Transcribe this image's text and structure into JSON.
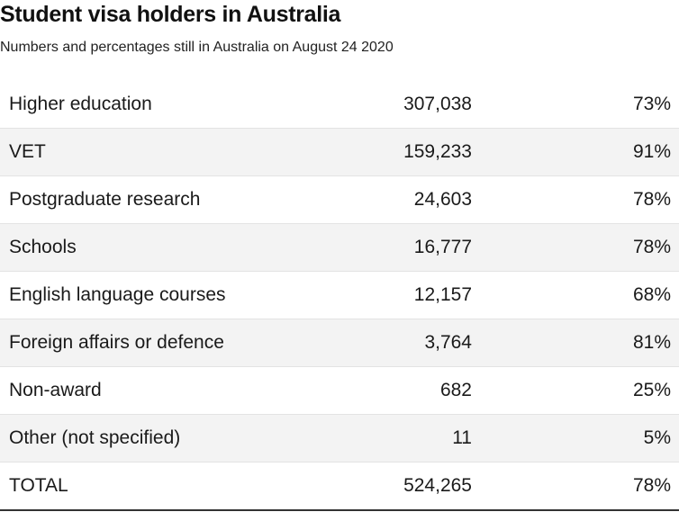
{
  "chart_data": {
    "type": "table",
    "title": "Student visa holders in Australia",
    "subtitle": "Numbers and percentages still in Australia on August 24 2020",
    "rows": [
      {
        "label": "Higher education",
        "number": "307,038",
        "percent": "73%"
      },
      {
        "label": "VET",
        "number": "159,233",
        "percent": "91%"
      },
      {
        "label": "Postgraduate research",
        "number": "24,603",
        "percent": "78%"
      },
      {
        "label": "Schools",
        "number": "16,777",
        "percent": "78%"
      },
      {
        "label": "English language courses",
        "number": "12,157",
        "percent": "68%"
      },
      {
        "label": "Foreign affairs or defence",
        "number": "3,764",
        "percent": "81%"
      },
      {
        "label": "Non-award",
        "number": "682",
        "percent": "25%"
      },
      {
        "label": "Other (not specified)",
        "number": "11",
        "percent": "5%"
      }
    ],
    "total": {
      "label": "TOTAL",
      "number": "524,265",
      "percent": "78%"
    },
    "colors": {
      "stripe": "#f3f3f3",
      "text": "#1a1a1a",
      "rule": "#333333"
    }
  }
}
